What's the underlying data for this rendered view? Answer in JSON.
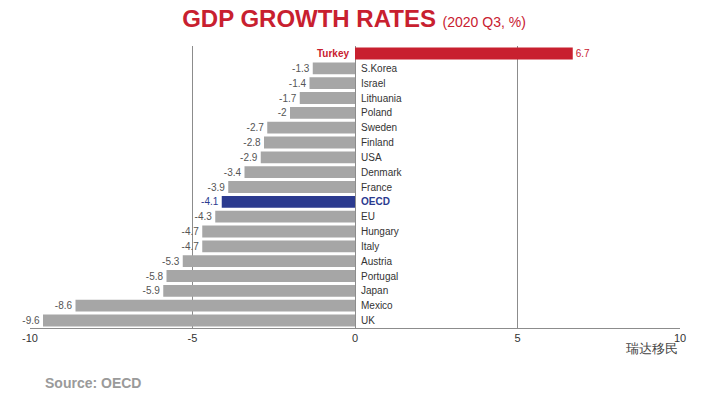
{
  "chart_data": {
    "type": "bar",
    "title": "GDP GROWTH RATES",
    "subtitle": "(2020 Q3, %)",
    "orientation": "horizontal",
    "categories": [
      "Turkey",
      "S.Korea",
      "Israel",
      "Lithuania",
      "Poland",
      "Sweden",
      "Finland",
      "USA",
      "Denmark",
      "France",
      "OECD",
      "EU",
      "Hungary",
      "Italy",
      "Austria",
      "Portugal",
      "Japan",
      "Mexico",
      "UK"
    ],
    "values": [
      6.7,
      -1.3,
      -1.4,
      -1.7,
      -2,
      -2.7,
      -2.8,
      -2.9,
      -3.4,
      -3.9,
      -4.1,
      -4.3,
      -4.7,
      -4.7,
      -5.3,
      -5.8,
      -5.9,
      -8.6,
      -9.6
    ],
    "colors": [
      "#c8202f",
      "#a6a6a6",
      "#a6a6a6",
      "#a6a6a6",
      "#a6a6a6",
      "#a6a6a6",
      "#a6a6a6",
      "#a6a6a6",
      "#a6a6a6",
      "#a6a6a6",
      "#2b3a8f",
      "#a6a6a6",
      "#a6a6a6",
      "#a6a6a6",
      "#a6a6a6",
      "#a6a6a6",
      "#a6a6a6",
      "#a6a6a6",
      "#a6a6a6"
    ],
    "xlim": [
      -10,
      10
    ],
    "xticks": [
      -10,
      -5,
      0,
      5,
      10
    ],
    "grid": true,
    "data_labels": true,
    "tick_labels": "x",
    "annotations": [
      "Source: OECD",
      "瑞达移民"
    ]
  }
}
